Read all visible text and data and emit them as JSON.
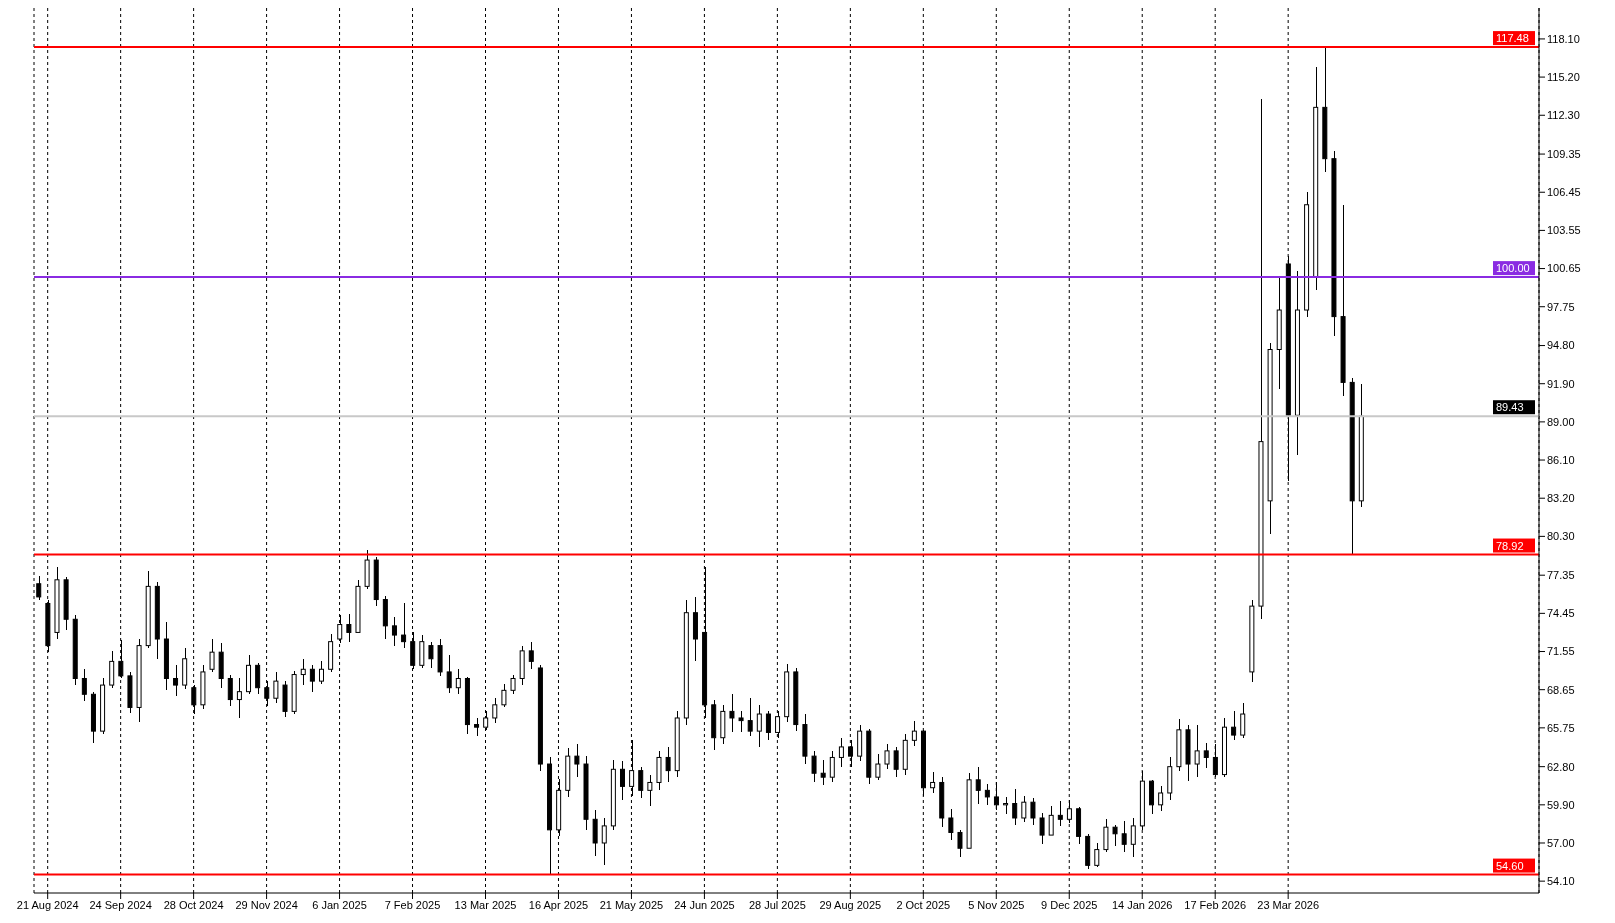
{
  "chart_data": {
    "type": "candlestick",
    "color": "#000000",
    "grid": "x",
    "categories": [
      null,
      "21 Aug 2024",
      null,
      null,
      null,
      null,
      null,
      null,
      null,
      "24 Sep 2024",
      null,
      null,
      null,
      null,
      null,
      null,
      null,
      "28 Oct 2024",
      null,
      null,
      null,
      null,
      null,
      null,
      null,
      "29 Nov 2024",
      null,
      null,
      null,
      null,
      null,
      null,
      null,
      "6 Jan 2025",
      null,
      null,
      null,
      null,
      null,
      null,
      null,
      "7 Feb 2025",
      null,
      null,
      null,
      null,
      null,
      null,
      null,
      "13 Mar 2025",
      null,
      null,
      null,
      null,
      null,
      null,
      null,
      "16 Apr 2025",
      null,
      null,
      null,
      null,
      null,
      null,
      null,
      "21 May 2025",
      null,
      null,
      null,
      null,
      null,
      null,
      null,
      "24 Jun 2025",
      null,
      null,
      null,
      null,
      null,
      null,
      null,
      "28 Jul 2025",
      null,
      null,
      null,
      null,
      null,
      null,
      null,
      "29 Aug 2025",
      null,
      null,
      null,
      null,
      null,
      null,
      null,
      "2 Oct 2025",
      null,
      null,
      null,
      null,
      null,
      null,
      null,
      "5 Nov 2025",
      null,
      null,
      null,
      null,
      null,
      null,
      null,
      "9 Dec 2025",
      null,
      null,
      null,
      null,
      null,
      null,
      null,
      "14 Jan 2026",
      null,
      null,
      null,
      null,
      null,
      null,
      null,
      "17 Feb 2026",
      null,
      null,
      null,
      null,
      null,
      null,
      null,
      "23 Mar 2026",
      null,
      null,
      null,
      null,
      null,
      null,
      null,
      null,
      null,
      null,
      null,
      null,
      null,
      null,
      null,
      null,
      null,
      null,
      null,
      null,
      null,
      null,
      null,
      null,
      null,
      null,
      null
    ],
    "ohlc": [
      [
        76.7,
        77.3,
        75.46,
        75.7
      ],
      [
        75.2,
        75.5,
        71.5,
        72.0
      ],
      [
        73.0,
        78.0,
        72.5,
        77.0
      ],
      [
        77.0,
        77.2,
        73.2,
        74.0
      ],
      [
        74.0,
        74.3,
        69.0,
        69.5
      ],
      [
        69.5,
        70.2,
        67.8,
        68.3
      ],
      [
        68.3,
        68.5,
        64.6,
        65.5
      ],
      [
        65.5,
        69.5,
        65.3,
        69.0
      ],
      [
        69.0,
        71.6,
        68.8,
        70.8
      ],
      [
        70.8,
        72.4,
        69.5,
        69.7
      ],
      [
        69.7,
        70.0,
        66.9,
        67.3
      ],
      [
        67.3,
        72.5,
        66.2,
        72.0
      ],
      [
        72.0,
        77.7,
        71.8,
        76.5
      ],
      [
        76.5,
        76.8,
        71.0,
        72.5
      ],
      [
        72.5,
        73.8,
        68.6,
        69.5
      ],
      [
        69.5,
        70.5,
        68.2,
        69.0
      ],
      [
        69.0,
        71.8,
        68.7,
        71.0
      ],
      [
        68.8,
        69.0,
        66.8,
        67.5
      ],
      [
        67.5,
        70.5,
        67.2,
        70.0
      ],
      [
        70.2,
        72.5,
        70.0,
        71.5
      ],
      [
        71.5,
        72.2,
        68.8,
        69.5
      ],
      [
        69.5,
        69.8,
        67.4,
        67.9
      ],
      [
        67.9,
        69.5,
        66.5,
        68.5
      ],
      [
        68.5,
        71.3,
        68.3,
        70.5
      ],
      [
        70.5,
        70.7,
        68.3,
        68.8
      ],
      [
        68.8,
        69.3,
        67.4,
        68.0
      ],
      [
        68.0,
        70.0,
        67.6,
        69.3
      ],
      [
        69.0,
        69.3,
        66.6,
        67.0
      ],
      [
        67.0,
        70.1,
        66.8,
        69.8
      ],
      [
        69.8,
        71.0,
        69.0,
        70.2
      ],
      [
        70.2,
        70.5,
        68.5,
        69.3
      ],
      [
        69.3,
        70.8,
        69.1,
        70.2
      ],
      [
        70.2,
        72.9,
        70.0,
        72.3
      ],
      [
        72.5,
        74.3,
        72.2,
        73.6
      ],
      [
        73.6,
        74.4,
        72.3,
        73.0
      ],
      [
        73.0,
        77.0,
        73.0,
        76.5
      ],
      [
        76.5,
        79.3,
        76.3,
        78.5
      ],
      [
        78.5,
        78.7,
        75.0,
        75.5
      ],
      [
        75.5,
        75.8,
        72.5,
        73.5
      ],
      [
        73.5,
        74.2,
        72.0,
        72.8
      ],
      [
        72.8,
        75.2,
        71.8,
        72.3
      ],
      [
        72.3,
        73.0,
        70.2,
        70.5
      ],
      [
        70.5,
        72.8,
        70.3,
        72.3
      ],
      [
        72.0,
        72.3,
        70.3,
        71.0
      ],
      [
        72.0,
        72.5,
        69.7,
        70.0
      ],
      [
        70.0,
        71.3,
        68.4,
        68.8
      ],
      [
        68.8,
        70.2,
        68.3,
        69.5
      ],
      [
        69.5,
        69.6,
        65.3,
        66.0
      ],
      [
        66.0,
        66.5,
        65.1,
        65.8
      ],
      [
        65.8,
        67.0,
        65.6,
        66.5
      ],
      [
        66.5,
        68.0,
        66.1,
        67.5
      ],
      [
        67.5,
        69.1,
        67.3,
        68.6
      ],
      [
        68.6,
        69.8,
        68.3,
        69.5
      ],
      [
        69.5,
        72.0,
        69.0,
        71.6
      ],
      [
        71.6,
        72.3,
        70.2,
        70.8
      ],
      [
        70.3,
        70.5,
        62.5,
        63.0
      ],
      [
        63.0,
        63.5,
        54.6,
        58.0
      ],
      [
        58.0,
        61.9,
        57.5,
        61.0
      ],
      [
        61.0,
        64.2,
        60.5,
        63.6
      ],
      [
        63.6,
        64.5,
        62.0,
        63.0
      ],
      [
        63.0,
        63.6,
        58.0,
        58.8
      ],
      [
        58.8,
        59.5,
        56.0,
        57.0
      ],
      [
        57.0,
        58.9,
        55.3,
        58.3
      ],
      [
        58.3,
        63.3,
        58.0,
        62.6
      ],
      [
        62.6,
        63.2,
        60.3,
        61.3
      ],
      [
        61.3,
        64.8,
        60.6,
        62.5
      ],
      [
        62.5,
        62.8,
        60.4,
        61.0
      ],
      [
        61.0,
        62.2,
        59.8,
        61.6
      ],
      [
        61.6,
        64.0,
        61.0,
        63.5
      ],
      [
        63.5,
        64.3,
        61.6,
        62.5
      ],
      [
        62.5,
        67.0,
        62.0,
        66.5
      ],
      [
        66.5,
        75.5,
        66.0,
        74.5
      ],
      [
        74.5,
        75.7,
        70.8,
        72.5
      ],
      [
        73.0,
        78.0,
        66.5,
        67.5
      ],
      [
        67.5,
        67.9,
        64.1,
        65.0
      ],
      [
        65.0,
        67.5,
        64.5,
        67.0
      ],
      [
        67.0,
        68.3,
        65.4,
        66.5
      ],
      [
        66.5,
        67.0,
        65.4,
        66.3
      ],
      [
        66.3,
        68.0,
        65.1,
        65.5
      ],
      [
        65.5,
        67.5,
        64.3,
        66.8
      ],
      [
        66.8,
        67.0,
        64.8,
        65.4
      ],
      [
        65.4,
        67.0,
        65.0,
        66.6
      ],
      [
        66.6,
        70.6,
        66.2,
        70.0
      ],
      [
        70.0,
        70.3,
        65.5,
        66.0
      ],
      [
        66.0,
        66.8,
        63.0,
        63.6
      ],
      [
        63.6,
        64.0,
        61.6,
        62.3
      ],
      [
        62.3,
        63.3,
        61.4,
        62.0
      ],
      [
        62.0,
        64.0,
        61.6,
        63.5
      ],
      [
        63.5,
        65.0,
        62.8,
        64.3
      ],
      [
        64.3,
        64.8,
        62.8,
        63.6
      ],
      [
        63.6,
        66.0,
        63.2,
        65.5
      ],
      [
        65.5,
        65.7,
        61.5,
        62.0
      ],
      [
        62.0,
        63.8,
        61.8,
        63.0
      ],
      [
        63.0,
        64.5,
        62.6,
        64.0
      ],
      [
        64.0,
        64.3,
        62.0,
        62.6
      ],
      [
        62.6,
        65.3,
        62.2,
        64.8
      ],
      [
        64.8,
        66.3,
        64.4,
        65.5
      ],
      [
        65.5,
        65.6,
        60.6,
        61.2
      ],
      [
        61.2,
        62.4,
        60.8,
        61.6
      ],
      [
        61.6,
        62.0,
        58.2,
        58.9
      ],
      [
        58.9,
        59.6,
        57.2,
        57.8
      ],
      [
        57.8,
        58.0,
        55.9,
        56.6
      ],
      [
        56.6,
        62.3,
        56.6,
        61.8
      ],
      [
        61.8,
        62.8,
        60.0,
        61.0
      ],
      [
        61.0,
        61.5,
        59.9,
        60.5
      ],
      [
        60.5,
        61.6,
        59.5,
        59.9
      ],
      [
        59.9,
        60.5,
        59.2,
        60.0
      ],
      [
        60.0,
        61.1,
        58.4,
        58.9
      ],
      [
        58.9,
        60.6,
        58.6,
        60.1
      ],
      [
        60.1,
        60.4,
        58.4,
        58.9
      ],
      [
        58.9,
        59.3,
        56.9,
        57.6
      ],
      [
        57.6,
        59.8,
        57.6,
        59.1
      ],
      [
        59.1,
        60.2,
        58.3,
        58.8
      ],
      [
        58.8,
        60.3,
        58.5,
        59.6
      ],
      [
        59.6,
        59.7,
        56.9,
        57.5
      ],
      [
        57.5,
        57.7,
        55.0,
        55.3
      ],
      [
        55.3,
        57.0,
        55.2,
        56.5
      ],
      [
        56.5,
        58.8,
        56.3,
        58.2
      ],
      [
        58.2,
        58.4,
        56.8,
        57.7
      ],
      [
        57.7,
        58.7,
        56.3,
        56.9
      ],
      [
        56.9,
        58.9,
        55.9,
        58.3
      ],
      [
        58.3,
        62.5,
        58.0,
        61.7
      ],
      [
        61.7,
        61.8,
        59.2,
        59.9
      ],
      [
        59.9,
        61.3,
        59.4,
        60.8
      ],
      [
        60.8,
        63.5,
        60.3,
        62.8
      ],
      [
        62.8,
        66.4,
        62.5,
        65.6
      ],
      [
        65.6,
        66.0,
        61.7,
        63.0
      ],
      [
        63.0,
        66.0,
        62.0,
        64.0
      ],
      [
        64.0,
        64.6,
        62.7,
        63.5
      ],
      [
        63.5,
        64.5,
        62.0,
        62.2
      ],
      [
        62.2,
        66.5,
        62.0,
        65.8
      ],
      [
        65.8,
        67.0,
        64.8,
        65.2
      ],
      [
        65.2,
        67.6,
        65.0,
        66.8
      ],
      [
        70.0,
        75.5,
        69.2,
        75.0
      ],
      [
        75.0,
        113.5,
        74.0,
        87.5
      ],
      [
        83.0,
        95.0,
        80.5,
        94.5
      ],
      [
        94.5,
        100.0,
        91.5,
        97.5
      ],
      [
        101.0,
        101.6,
        84.5,
        89.5
      ],
      [
        89.5,
        100.5,
        86.5,
        97.5
      ],
      [
        97.5,
        106.5,
        97.0,
        105.5
      ],
      [
        100.0,
        116.0,
        99.0,
        112.9
      ],
      [
        112.9,
        117.48,
        108.0,
        109.0
      ],
      [
        109.0,
        109.6,
        95.5,
        97.0
      ],
      [
        97.0,
        105.5,
        91.0,
        92.0
      ],
      [
        92.0,
        92.3,
        78.92,
        83.0
      ],
      [
        83.0,
        91.9,
        82.5,
        89.43
      ],
      null,
      null,
      null,
      null,
      null,
      null,
      null,
      null,
      null,
      null,
      null,
      null,
      null,
      null,
      null,
      null,
      null,
      null,
      null
    ],
    "ylim": [
      53.2,
      120.45
    ],
    "yticks": [
      {
        "value": 54.1,
        "label": "54.10"
      },
      {
        "value": 57,
        "label": "57.00"
      },
      {
        "value": 59.9,
        "label": "59.90"
      },
      {
        "value": 62.8,
        "label": "62.80"
      },
      {
        "value": 65.75,
        "label": "65.75"
      },
      {
        "value": 68.65,
        "label": "68.65"
      },
      {
        "value": 71.55,
        "label": "71.55"
      },
      {
        "value": 74.45,
        "label": "74.45"
      },
      {
        "value": 77.35,
        "label": "77.35"
      },
      {
        "value": 80.3,
        "label": "80.30"
      },
      {
        "value": 83.2,
        "label": "83.20"
      },
      {
        "value": 86.1,
        "label": "86.10"
      },
      {
        "value": 89,
        "label": "89.00"
      },
      {
        "value": 91.9,
        "label": "91.90"
      },
      {
        "value": 94.8,
        "label": "94.80"
      },
      {
        "value": 97.75,
        "label": "97.75"
      },
      {
        "value": 100.65,
        "label": "100.65"
      },
      {
        "value": 103.55,
        "label": "103.55"
      },
      {
        "value": 106.45,
        "label": "106.45"
      },
      {
        "value": 109.35,
        "label": "109.35"
      },
      {
        "value": 112.3,
        "label": "112.30"
      },
      {
        "value": 115.2,
        "label": "115.20"
      },
      {
        "value": 118.1,
        "label": "118.10"
      }
    ],
    "ref_lines": [
      {
        "axis": "y",
        "value": 117.48,
        "label": "117.48",
        "color": "#ff0000"
      },
      {
        "axis": "y",
        "value": 100,
        "label": "100.00",
        "color": "#8a2be2"
      },
      {
        "axis": "y",
        "value": 89.43,
        "label": "89.43",
        "color": "#c8c8c8"
      },
      {
        "axis": "y",
        "value": 78.92,
        "label": "78.92",
        "color": "#ff0000"
      },
      {
        "axis": "y",
        "value": 54.6,
        "label": "54.60",
        "color": "#ff0000"
      }
    ]
  }
}
